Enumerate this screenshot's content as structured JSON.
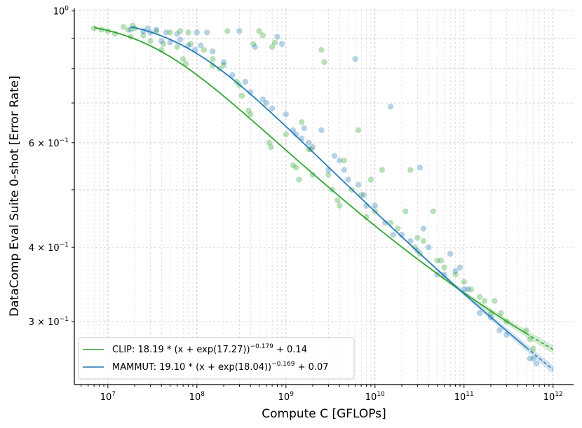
{
  "chart_data": {
    "type": "scatter",
    "xscale": "log",
    "yscale": "log",
    "xlabel": "Compute C [GFLOPs]",
    "ylabel": "DataComp Eval Suite 0-shot [Error Rate]",
    "xlim": [
      4200000,
      1700000000000
    ],
    "ylim": [
      0.235,
      1.01
    ],
    "grid": true,
    "x_ticks": [
      {
        "value": 10000000,
        "base": "10",
        "exp": "7"
      },
      {
        "value": 100000000,
        "base": "10",
        "exp": "8"
      },
      {
        "value": 1000000000,
        "base": "10",
        "exp": "9"
      },
      {
        "value": 10000000000,
        "base": "10",
        "exp": "10"
      },
      {
        "value": 100000000000,
        "base": "10",
        "exp": "11"
      },
      {
        "value": 1000000000000,
        "base": "10",
        "exp": "12"
      }
    ],
    "y_ticks": [
      {
        "value": 1.0,
        "coef": "",
        "base": "10",
        "exp": "0"
      },
      {
        "value": 0.6,
        "coef": "6 × ",
        "base": "10",
        "exp": "−1"
      },
      {
        "value": 0.4,
        "coef": "4 × ",
        "base": "10",
        "exp": "−1"
      },
      {
        "value": 0.3,
        "coef": "3 × ",
        "base": "10",
        "exp": "−1"
      }
    ],
    "legend_position": "lower-left",
    "series": [
      {
        "name": "CLIP",
        "legend_label": "CLIP: 18.19 * (x + exp(17.27))^−0.179 + 0.14",
        "legend_main": "CLIP: 18.19 * (x + exp(17.27))",
        "legend_exp": "−0.179",
        "legend_tail": " + 0.14",
        "color": "#2ca02c",
        "fit": {
          "a": 18.19,
          "b": 17.27,
          "alpha": 0.179,
          "c": 0.14
        },
        "fit_solid_range": [
          7000000,
          500000000000
        ],
        "fit_dashed_range": [
          500000000000,
          1000000000000
        ],
        "points": [
          [
            7000000,
            0.935
          ],
          [
            8500000,
            0.93
          ],
          [
            10000000.0,
            0.925
          ],
          [
            12000000.0,
            0.915
          ],
          [
            15000000.0,
            0.94
          ],
          [
            17000000.0,
            0.93
          ],
          [
            18000000.0,
            0.905
          ],
          [
            19000000.0,
            0.945
          ],
          [
            20000000.0,
            0.935
          ],
          [
            25000000.0,
            0.91
          ],
          [
            30000000.0,
            0.89
          ],
          [
            35000000.0,
            0.925
          ],
          [
            40000000.0,
            0.86
          ],
          [
            42000000.0,
            0.88
          ],
          [
            50000000.0,
            0.92
          ],
          [
            60000000.0,
            0.87
          ],
          [
            65000000.0,
            0.925
          ],
          [
            70000000.0,
            0.83
          ],
          [
            75000000.0,
            0.815
          ],
          [
            80000000.0,
            0.92
          ],
          [
            85000000.0,
            0.88
          ],
          [
            120000000.0,
            0.86
          ],
          [
            150000000.0,
            0.83
          ],
          [
            150000000.0,
            0.81
          ],
          [
            180000000.0,
            0.8
          ],
          [
            200000000.0,
            0.81
          ],
          [
            220000000.0,
            0.925
          ],
          [
            280000000.0,
            0.76
          ],
          [
            300000000.0,
            0.75
          ],
          [
            320000000.0,
            0.72
          ],
          [
            380000000.0,
            0.68
          ],
          [
            400000000.0,
            0.67
          ],
          [
            430000000.0,
            0.88
          ],
          [
            500000000.0,
            0.925
          ],
          [
            550000000.0,
            0.91
          ],
          [
            650000000.0,
            0.6
          ],
          [
            680000000.0,
            0.59
          ],
          [
            700000000.0,
            0.87
          ],
          [
            750000000.0,
            0.885
          ],
          [
            1000000000.0,
            0.62
          ],
          [
            1200000000.0,
            0.55
          ],
          [
            1300000000.0,
            0.545
          ],
          [
            1400000000.0,
            0.52
          ],
          [
            1500000000.0,
            0.65
          ],
          [
            1800000000.0,
            0.585
          ],
          [
            1900000000.0,
            0.585
          ],
          [
            2000000000.0,
            0.53
          ],
          [
            2500000000.0,
            0.86
          ],
          [
            2700000000.0,
            0.82
          ],
          [
            3000000000.0,
            0.53
          ],
          [
            3300000000.0,
            0.5
          ],
          [
            3800000000.0,
            0.48
          ],
          [
            4000000000.0,
            0.47
          ],
          [
            4500000000.0,
            0.56
          ],
          [
            5500000000.0,
            0.5
          ],
          [
            6500000000.0,
            0.63
          ],
          [
            7000000000.0,
            0.49
          ],
          [
            8000000000.0,
            0.45
          ],
          [
            9000000000.0,
            0.52
          ],
          [
            10000000000.0,
            0.46
          ],
          [
            12000000000.0,
            0.54
          ],
          [
            15000000000.0,
            0.44
          ],
          [
            18000000000.0,
            0.43
          ],
          [
            22000000000.0,
            0.46
          ],
          [
            25000000000.0,
            0.54
          ],
          [
            28000000000.0,
            0.4
          ],
          [
            30000000000.0,
            0.415
          ],
          [
            32000000000.0,
            0.39
          ],
          [
            35000000000.0,
            0.41
          ],
          [
            45000000000.0,
            0.46
          ],
          [
            50000000000.0,
            0.38
          ],
          [
            55000000000.0,
            0.38
          ],
          [
            60000000000.0,
            0.37
          ],
          [
            80000000000.0,
            0.36
          ],
          [
            100000000000.0,
            0.35
          ],
          [
            120000000000.0,
            0.34
          ],
          [
            150000000000.0,
            0.33
          ],
          [
            170000000000.0,
            0.325
          ],
          [
            200000000000.0,
            0.31
          ],
          [
            220000000000.0,
            0.325
          ],
          [
            260000000000.0,
            0.31
          ],
          [
            300000000000.0,
            0.3
          ],
          [
            500000000000.0,
            0.29
          ],
          [
            550000000000.0,
            0.28
          ],
          [
            600000000000.0,
            0.27
          ]
        ]
      },
      {
        "name": "MAMMUT",
        "legend_label": "MAMMUT: 19.10 * (x + exp(18.04))^−0.169 + 0.07",
        "legend_main": "MAMMUT: 19.10 * (x + exp(18.04))",
        "legend_exp": "−0.169",
        "legend_tail": " + 0.07",
        "color": "#1f77b4",
        "fit": {
          "a": 19.1,
          "b": 18.04,
          "alpha": 0.169,
          "c": 0.07
        },
        "fit_solid_range": [
          18000000,
          500000000000
        ],
        "fit_dashed_range": [
          500000000000,
          1000000000000
        ],
        "points": [
          [
            18000000.0,
            0.93
          ],
          [
            25000000.0,
            0.925
          ],
          [
            28000000.0,
            0.935
          ],
          [
            30000000.0,
            0.92
          ],
          [
            35000000.0,
            0.93
          ],
          [
            40000000.0,
            0.89
          ],
          [
            45000000.0,
            0.92
          ],
          [
            50000000.0,
            0.885
          ],
          [
            60000000.0,
            0.915
          ],
          [
            65000000.0,
            0.895
          ],
          [
            80000000.0,
            0.875
          ],
          [
            95000000.0,
            0.86
          ],
          [
            100000000.0,
            0.92
          ],
          [
            110000000.0,
            0.875
          ],
          [
            130000000.0,
            0.92
          ],
          [
            150000000.0,
            0.855
          ],
          [
            200000000.0,
            0.82
          ],
          [
            250000000.0,
            0.78
          ],
          [
            300000000.0,
            0.925
          ],
          [
            350000000.0,
            0.76
          ],
          [
            400000000.0,
            0.73
          ],
          [
            450000000.0,
            0.87
          ],
          [
            550000000.0,
            0.71
          ],
          [
            600000000.0,
            0.7
          ],
          [
            700000000.0,
            0.685
          ],
          [
            800000000.0,
            0.905
          ],
          [
            900000000.0,
            0.88
          ],
          [
            1000000000.0,
            0.67
          ],
          [
            1200000000.0,
            0.63
          ],
          [
            1300000000.0,
            0.62
          ],
          [
            1500000000.0,
            0.61
          ],
          [
            1600000000.0,
            0.635
          ],
          [
            1800000000.0,
            0.6
          ],
          [
            2000000000.0,
            0.59
          ],
          [
            2500000000.0,
            0.63
          ],
          [
            3000000000.0,
            0.54
          ],
          [
            3500000000.0,
            0.57
          ],
          [
            4000000000.0,
            0.56
          ],
          [
            4500000000.0,
            0.54
          ],
          [
            5000000000.0,
            0.52
          ],
          [
            6000000000.0,
            0.83
          ],
          [
            6500000000.0,
            0.51
          ],
          [
            7500000000.0,
            0.49
          ],
          [
            8000000000.0,
            0.47
          ],
          [
            10000000000.0,
            0.47
          ],
          [
            13000000000.0,
            0.44
          ],
          [
            15000000000.0,
            0.69
          ],
          [
            16000000000.0,
            0.42
          ],
          [
            20000000000.0,
            0.42
          ],
          [
            25000000000.0,
            0.41
          ],
          [
            30000000000.0,
            0.395
          ],
          [
            32000000000.0,
            0.545
          ],
          [
            35000000000.0,
            0.43
          ],
          [
            40000000000.0,
            0.4
          ],
          [
            50000000000.0,
            0.36
          ],
          [
            60000000000.0,
            0.36
          ],
          [
            70000000000.0,
            0.39
          ],
          [
            80000000000.0,
            0.365
          ],
          [
            90000000000.0,
            0.37
          ],
          [
            100000000000.0,
            0.34
          ],
          [
            110000000000.0,
            0.34
          ],
          [
            150000000000.0,
            0.31
          ],
          [
            200000000000.0,
            0.305
          ],
          [
            250000000000.0,
            0.29
          ],
          [
            300000000000.0,
            0.285
          ],
          [
            550000000000.0,
            0.26
          ],
          [
            600000000000.0,
            0.26
          ],
          [
            650000000000.0,
            0.255
          ]
        ]
      }
    ]
  }
}
